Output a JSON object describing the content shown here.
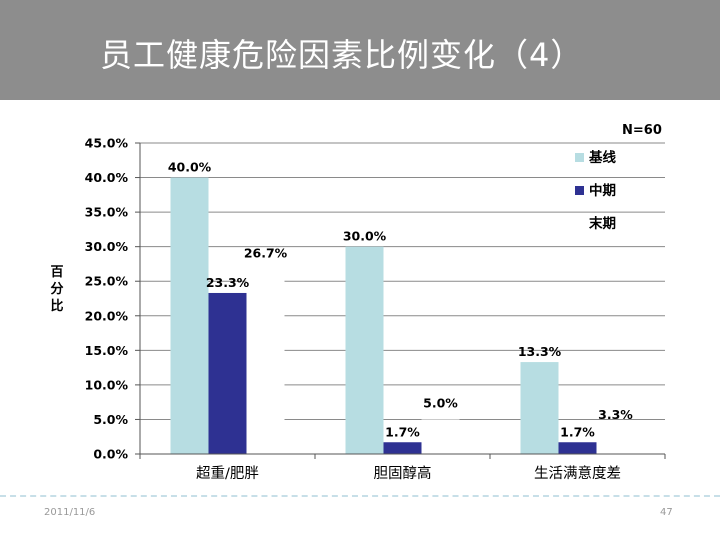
{
  "slide": {
    "title": "员工健康危险因素比例变化（4）",
    "footer_date": "2011/11/6",
    "page_number": "47"
  },
  "chart_data": {
    "type": "bar",
    "title": "",
    "annotation": "N=60",
    "ylabel": "百分比",
    "xlabel": "",
    "ylim": [
      0,
      45
    ],
    "ytick_step": 5,
    "ytick_labels": [
      "0.0%",
      "5.0%",
      "10.0%",
      "15.0%",
      "20.0%",
      "25.0%",
      "30.0%",
      "35.0%",
      "40.0%",
      "45.0%"
    ],
    "grid": true,
    "legend_position": "top-right",
    "categories": [
      "超重/肥胖",
      "胆固醇高",
      "生活满意度差"
    ],
    "series": [
      {
        "name": "基线",
        "color": "#b7dde2",
        "values": [
          40.0,
          30.0,
          13.3
        ],
        "labels": [
          "40.0%",
          "30.0%",
          "13.3%"
        ]
      },
      {
        "name": "中期",
        "color": "#2e3192",
        "values": [
          23.3,
          1.7,
          1.7
        ],
        "labels": [
          "23.3%",
          "1.7%",
          "1.7%"
        ]
      },
      {
        "name": "末期",
        "color": "#ffffff",
        "values": [
          26.7,
          5.0,
          3.3
        ],
        "labels": [
          "26.7%",
          "5.0%",
          "3.3%"
        ]
      }
    ]
  }
}
